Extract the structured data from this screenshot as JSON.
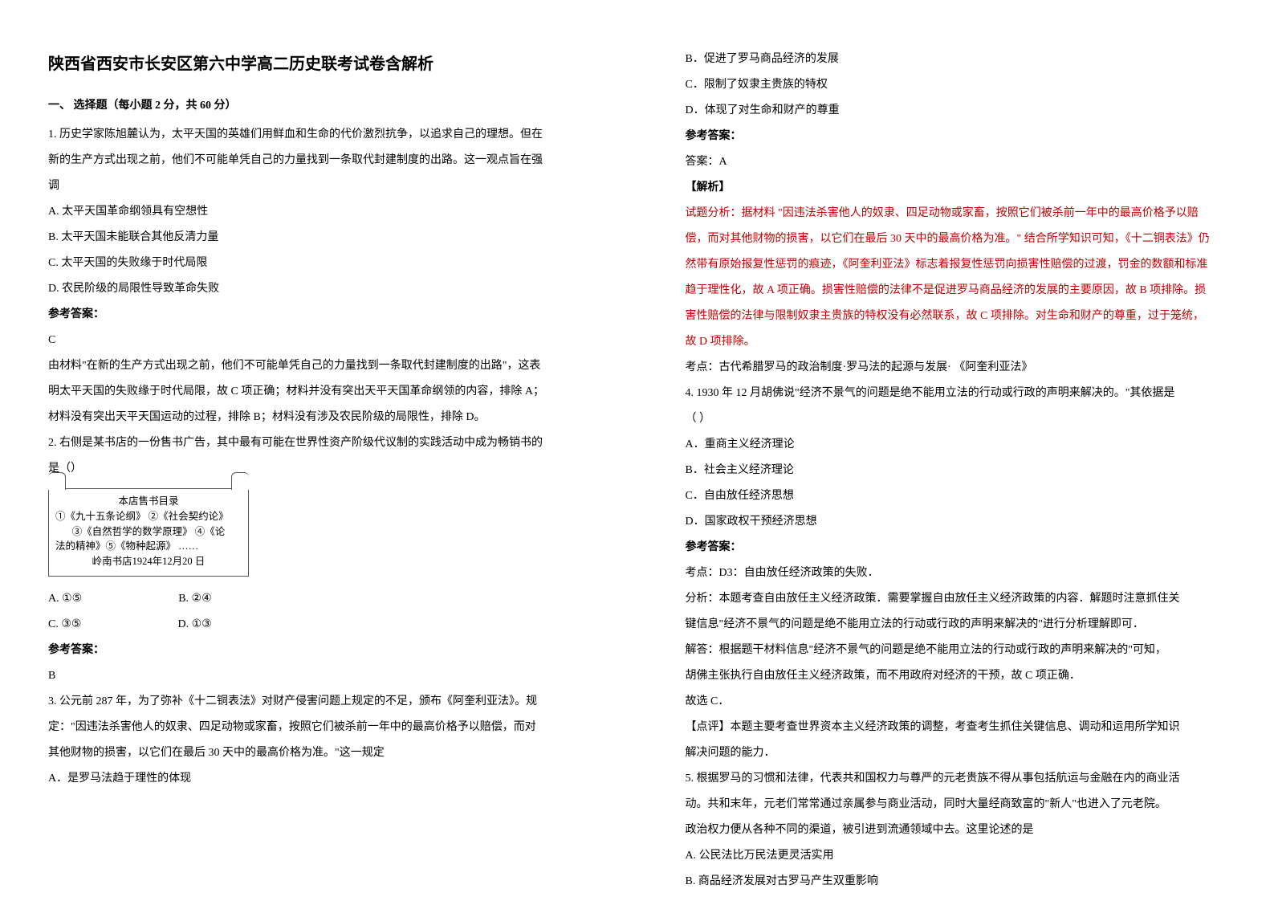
{
  "title": "陕西省西安市长安区第六中学高二历史联考试卷含解析",
  "section1_head": "一、 选择题（每小题 2 分，共 60 分）",
  "q1": {
    "stem1": "1. 历史学家陈旭麓认为，太平天国的英雄们用鲜血和生命的代价激烈抗争，以追求自己的理想。但在",
    "stem2": "新的生产方式出现之前，他们不可能单凭自己的力量找到一条取代封建制度的出路。这一观点旨在强",
    "stem3": "调",
    "A": "A. 太平天国革命纲领具有空想性",
    "B": "B. 太平天国未能联合其他反清力量",
    "C": "C. 太平天国的失败缘于时代局限",
    "D": "D. 农民阶级的局限性导致革命失败",
    "ans_head": "参考答案：",
    "ans": "C",
    "exp1": "由材料\"在新的生产方式出现之前，他们不可能单凭自己的力量找到一条取代封建制度的出路\"，这表",
    "exp2": "明太平天国的失败缘于时代局限，故 C 项正确；材料并没有突出天平天国革命纲领的内容，排除 A；",
    "exp3": "材料没有突出天平天国运动的过程，排除 B；材料没有涉及农民阶级的局限性，排除 D。"
  },
  "q2": {
    "stem1": "2. 右侧是某书店的一份售书广告，其中最有可能在世界性资产阶级代议制的实践活动中成为畅销书的",
    "stem2": "是（）",
    "box_title": "本店售书目录",
    "box_l1": "①《九十五条论纲》 ②《社会契约论》",
    "box_l2": "③《自然哲学的数学原理》  ④《论",
    "box_l3": "法的精神》⑤《物种起源》  ……",
    "box_l4": "岭南书店1924年12月20 日",
    "optA": "A.    ①⑤",
    "optB": "B.  ②④",
    "optC": "C.    ③⑤",
    "optD": "D.  ①③",
    "ans_head": "参考答案：",
    "ans": "B"
  },
  "q3": {
    "stem1": "3. 公元前 287 年，为了弥补《十二铜表法》对财产侵害问题上规定的不足，颁布《阿奎利亚法》。规",
    "stem2": "定：\"因违法杀害他人的奴隶、四足动物或家畜，按照它们被杀前一年中的最高价格予以赔偿，而对",
    "stem3": "其他财物的损害，以它们在最后 30 天中的最高价格为准。\"这一规定",
    "A": "A．是罗马法趋于理性的体现",
    "B": "B．促进了罗马商品经济的发展",
    "C": "C．限制了奴隶主贵族的特权",
    "D": "D．体现了对生命和财产的尊重",
    "ans_head": "参考答案：",
    "ans_lbl": "答案：A",
    "exp_head": "【解析】",
    "e1": "试题分析：据材料 \"因违法杀害他人的奴隶、四足动物或家畜，按照它们被杀前一年中的最高价格予以赔",
    "e2": "偿，而对其他财物的损害，以它们在最后 30 天中的最高价格为准。\" 结合所学知识可知，《十二铜表法》仍",
    "e3": "然带有原始报复性惩罚的痕迹，《阿奎利亚法》标志着报复性惩罚向损害性赔偿的过渡，罚金的数额和标准",
    "e4": "趋于理性化，故 A 项正确。损害性赔偿的法律不是促进罗马商品经济的发展的主要原因，故 B 项排除。损",
    "e5": "害性赔偿的法律与限制奴隶主贵族的特权没有必然联系，故 C 项排除。对生命和财产的尊重，过于笼统，",
    "e6": "故 D 项排除。",
    "kd": "考点：古代希腊罗马的政治制度·罗马法的起源与发展· 《阿奎利亚法》"
  },
  "q4": {
    "stem1": "4. 1930 年 12 月胡佛说\"经济不景气的问题是绝不能用立法的行动或行政的声明来解决的。\"其依据是",
    "stem2": "（     ）",
    "A": "A．重商主义经济理论",
    "B": "B．社会主义经济理论",
    "C": "C．自由放任经济思想",
    "D": "D．国家政权干预经济思想",
    "ans_head": "参考答案：",
    "k1": "考点：D3：自由放任经济政策的失败．",
    "k2": "分析：本题考查自由放任主义经济政策．需要掌握自由放任主义经济政策的内容．解题时注意抓住关",
    "k3": "键信息\"经济不景气的问题是绝不能用立法的行动或行政的声明来解决的\"进行分析理解即可．",
    "k4": "解答：根据题干材料信息\"经济不景气的问题是绝不能用立法的行动或行政的声明来解决的\"可知，",
    "k5": "胡佛主张执行自由放任主义经济政策，而不用政府对经济的干预，故 C 项正确．",
    "k6": "故选 C．",
    "k7": "【点评】本题主要考查世界资本主义经济政策的调整，考查考生抓住关键信息、调动和运用所学知识",
    "k8": "解决问题的能力．"
  },
  "q5": {
    "stem1": "5. 根据罗马的习惯和法律，代表共和国权力与尊严的元老贵族不得从事包括航运与金融在内的商业活",
    "stem2": "动。共和末年，元老们常常通过亲属参与商业活动，同时大量经商致富的\"新人\"也进入了元老院。",
    "stem3": "政治权力便从各种不同的渠道，被引进到流通领域中去。这里论述的是",
    "A": "A. 公民法比万民法更灵活实用",
    "B": "B. 商品经济发展对古罗马产生双重影响"
  }
}
